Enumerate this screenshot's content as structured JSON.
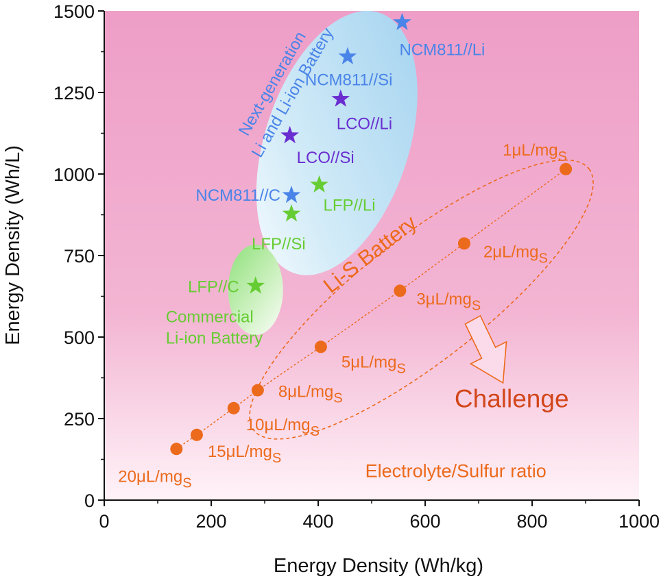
{
  "chart_data": {
    "type": "scatter",
    "xlabel": "Energy Density (Wh/kg)",
    "ylabel": "Energy Density (Wh/L)",
    "xlim": [
      0,
      1000
    ],
    "ylim": [
      0,
      1500
    ],
    "x_ticks": [
      "0",
      "200",
      "400",
      "600",
      "800",
      "1000"
    ],
    "y_ticks": [
      "0",
      "250",
      "500",
      "750",
      "1000",
      "1250",
      "1500"
    ],
    "grid": false,
    "colors": {
      "li_s": "#ec6a1c",
      "challenge": "#d2461a",
      "next_gen": "#4a84e8",
      "lco": "#6a2ed0",
      "lfp": "#66cc33",
      "bg_top": "#ee9ec7",
      "bg_bottom": "#fff3f8"
    },
    "region_labels": {
      "next_gen_line1": "Next-generation",
      "next_gen_line2": "Li and Li-ion Battery",
      "commercial_line1": "Commercial",
      "commercial_line2": "Li-ion Battery",
      "li_s": "Li-S Battery",
      "challenge": "Challenge",
      "es_ratio": "Electrolyte/Sulfur ratio"
    },
    "li_s_series": [
      {
        "x": 863,
        "y": 1015,
        "label_main": "1μL/mg",
        "label_sub": "S"
      },
      {
        "x": 673,
        "y": 787,
        "label_main": "2μL/mg",
        "label_sub": "S"
      },
      {
        "x": 553,
        "y": 642,
        "label_main": "3μL/mg",
        "label_sub": "S"
      },
      {
        "x": 405,
        "y": 470,
        "label_main": "5μL/mg",
        "label_sub": "S"
      },
      {
        "x": 287,
        "y": 337,
        "label_main": "8μL/mg",
        "label_sub": "S"
      },
      {
        "x": 242,
        "y": 282,
        "label_main": "10μL/mg",
        "label_sub": "S"
      },
      {
        "x": 173,
        "y": 200,
        "label_main": "15μL/mg",
        "label_sub": "S"
      },
      {
        "x": 135,
        "y": 157,
        "label_main": "20μL/mg",
        "label_sub": "S"
      }
    ],
    "star_series": [
      {
        "x": 557,
        "y": 1465,
        "label": "NCM811//Li",
        "color": "#4a84e8"
      },
      {
        "x": 455,
        "y": 1360,
        "label": "NCM811//Si",
        "color": "#4a84e8"
      },
      {
        "x": 442,
        "y": 1230,
        "label": "LCO//Li",
        "color": "#6a2ed0"
      },
      {
        "x": 347,
        "y": 1118,
        "label": "LCO//Si",
        "color": "#6a2ed0"
      },
      {
        "x": 350,
        "y": 935,
        "label": "NCM811//C",
        "color": "#4a84e8"
      },
      {
        "x": 402,
        "y": 967,
        "label": "LFP//Li",
        "color": "#66cc33"
      },
      {
        "x": 350,
        "y": 878,
        "label": "LFP//Si",
        "color": "#66cc33"
      },
      {
        "x": 283,
        "y": 657,
        "label": "LFP//C",
        "color": "#66cc33"
      }
    ]
  }
}
